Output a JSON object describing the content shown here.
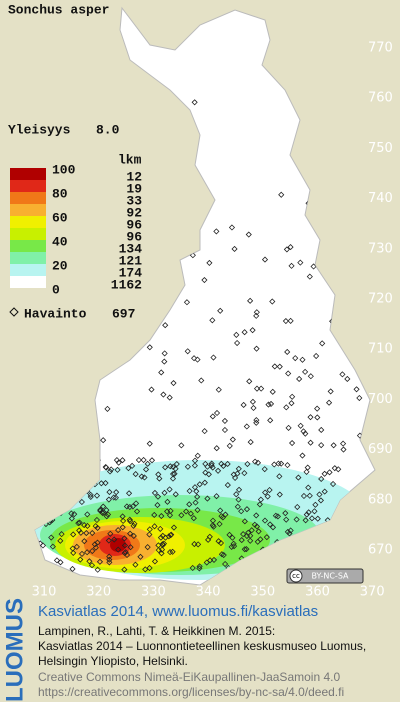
{
  "map": {
    "title": "Sonchus asper",
    "frequency": {
      "label": "Yleisyys",
      "value": "8.0"
    },
    "legend": {
      "levels": [
        100,
        80,
        60,
        40,
        20,
        0
      ],
      "count_header": "lkm",
      "colors": [
        "#b00000",
        "#e02818",
        "#f07818",
        "#f8b030",
        "#f0f000",
        "#c8f000",
        "#78e848",
        "#80f0a8",
        "#b8f4f0",
        "#ffffff"
      ],
      "counts": [
        12,
        19,
        33,
        92,
        96,
        96,
        134,
        121,
        174,
        1162
      ],
      "observation_label": "Havainto",
      "observation_count": 697
    },
    "north_ticks": [
      770,
      760,
      750,
      740,
      730,
      720,
      710,
      700,
      690,
      680,
      670
    ],
    "east_ticks": [
      310,
      320,
      330,
      340,
      350,
      360,
      370
    ],
    "license_badge": {
      "cc": "cc",
      "text": "BY-NC-SA"
    },
    "footer": {
      "logo": "LUOMUS",
      "headline": "Kasviatlas 2014, www.luomus.fi/kasviatlas",
      "citation": [
        "Lampinen, R., Lahti, T. & Heikkinen M. 2015:",
        "Kasviatlas 2014 – Luonnontieteellinen keskusmuseo Luomus,",
        "Helsingin Yliopisto, Helsinki."
      ],
      "license": [
        "Creative Commons Nimeä-EiKaupallinen-JaaSamoin 4.0",
        "https://creativecommons.org/licenses/by-nc-sa/4.0/deed.fi"
      ]
    }
  }
}
